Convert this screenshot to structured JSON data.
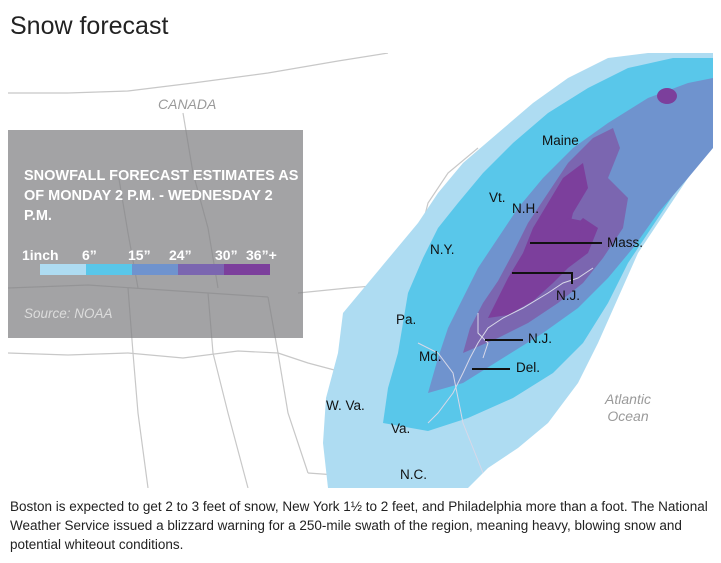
{
  "title": "Snow forecast",
  "legend": {
    "heading": "SNOWFALL FORECAST ESTIMATES AS OF MONDAY 2 P.M. - WEDNESDAY 2 P.M.",
    "ticks": [
      "1inch",
      "6”",
      "15”",
      "24”",
      "30”",
      "36”+"
    ],
    "colors": [
      "#aedcf2",
      "#59c7ea",
      "#6f93ce",
      "#7b66b0",
      "#7c3f9c"
    ],
    "source": "Source: NOAA"
  },
  "map": {
    "countries": {
      "canada": "CANADA"
    },
    "ocean": "Atlantic Ocean",
    "state_labels": {
      "maine": "Maine",
      "vt": "Vt.",
      "nh": "N.H.",
      "mass": "Mass.",
      "ny": "N.Y.",
      "nj1": "N.J.",
      "nj2": "N.J.",
      "pa": "Pa.",
      "md": "Md.",
      "del": "Del.",
      "wva": "W. Va.",
      "va": "Va.",
      "nc": "N.C."
    },
    "colors": {
      "land": "#ffffff",
      "borders": "#c8c8c8",
      "band_light": "#aedcf2",
      "band_mid": "#59c7ea",
      "band_blue": "#6f93ce",
      "band_violet": "#7b66b0",
      "band_purple": "#7c3f9c"
    }
  },
  "caption": "Boston is expected to get 2 to 3 feet of snow, New York 1½ to 2 feet, and Philadelphia more than a foot. The National Weather Service issued a blizzard warning for a 250-mile swath of the region, meaning heavy, blowing snow and potential whiteout conditions."
}
